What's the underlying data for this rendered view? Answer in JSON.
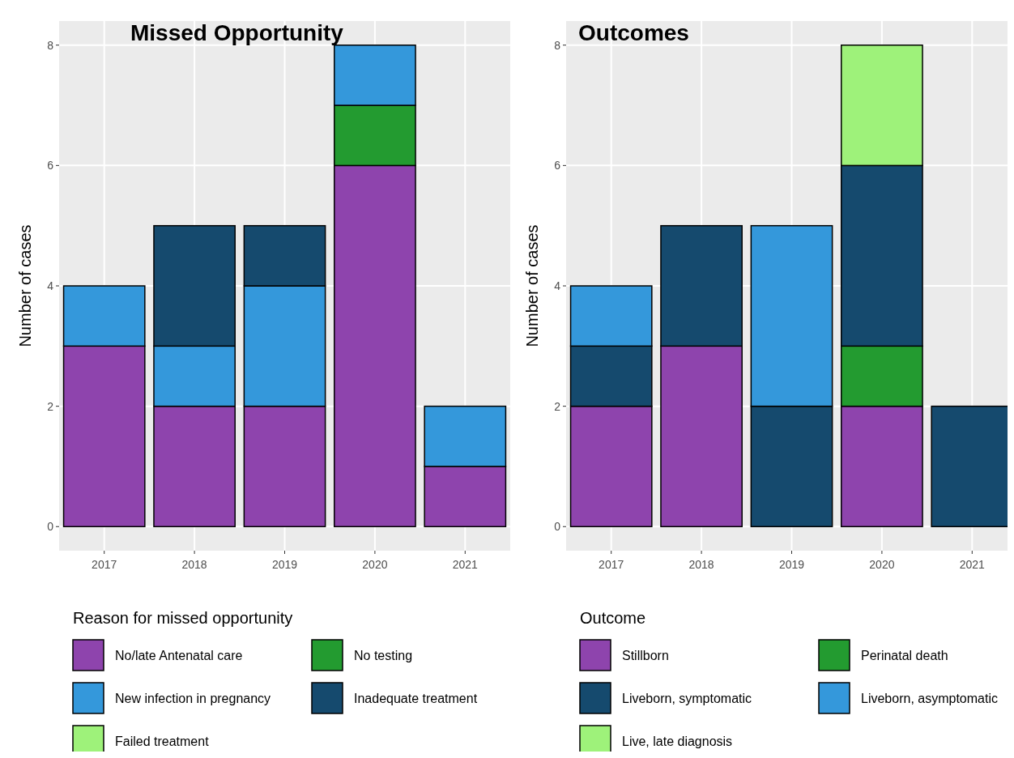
{
  "chart_data": [
    {
      "type": "bar",
      "title": "Missed Opportunity",
      "ylabel": "Number of cases",
      "legend_title": "Reason for missed opportunity",
      "categories": [
        "2017",
        "2018",
        "2019",
        "2020",
        "2021"
      ],
      "stacked": true,
      "grid": true,
      "legend": "bottom",
      "ylim": [
        -0.4,
        8.4
      ],
      "yticks": [
        0,
        2,
        4,
        6,
        8
      ],
      "series": [
        {
          "name": "No/late Antenatal care",
          "color": "#8e44ad",
          "values": [
            3,
            2,
            2,
            6,
            1
          ]
        },
        {
          "name": "No testing",
          "color": "#239b30",
          "values": [
            0,
            0,
            0,
            1,
            0
          ]
        },
        {
          "name": "New infection in pregnancy",
          "color": "#3498db",
          "values": [
            1,
            1,
            2,
            1,
            1
          ]
        },
        {
          "name": "Inadequate treatment",
          "color": "#154a6e",
          "values": [
            0,
            2,
            1,
            0,
            0
          ]
        },
        {
          "name": "Failed treatment",
          "color": "#9ef27a",
          "values": [
            0,
            0,
            0,
            0,
            0
          ]
        }
      ]
    },
    {
      "type": "bar",
      "title": "Outcomes",
      "ylabel": "Number of cases",
      "legend_title": "Outcome",
      "categories": [
        "2017",
        "2018",
        "2019",
        "2020",
        "2021"
      ],
      "stacked": true,
      "grid": true,
      "legend": "bottom",
      "ylim": [
        -0.4,
        8.4
      ],
      "yticks": [
        0,
        2,
        4,
        6,
        8
      ],
      "series": [
        {
          "name": "Stillborn",
          "color": "#8e44ad",
          "values": [
            2,
            3,
            0,
            2,
            0
          ]
        },
        {
          "name": "Perinatal death",
          "color": "#239b30",
          "values": [
            0,
            0,
            0,
            1,
            0
          ]
        },
        {
          "name": "Liveborn, symptomatic",
          "color": "#154a6e",
          "values": [
            1,
            2,
            2,
            3,
            2
          ]
        },
        {
          "name": "Liveborn, asymptomatic",
          "color": "#3498db",
          "values": [
            1,
            0,
            3,
            0,
            0
          ]
        },
        {
          "name": "Live, late diagnosis",
          "color": "#9ef27a",
          "values": [
            0,
            0,
            0,
            2,
            0
          ]
        }
      ]
    }
  ]
}
